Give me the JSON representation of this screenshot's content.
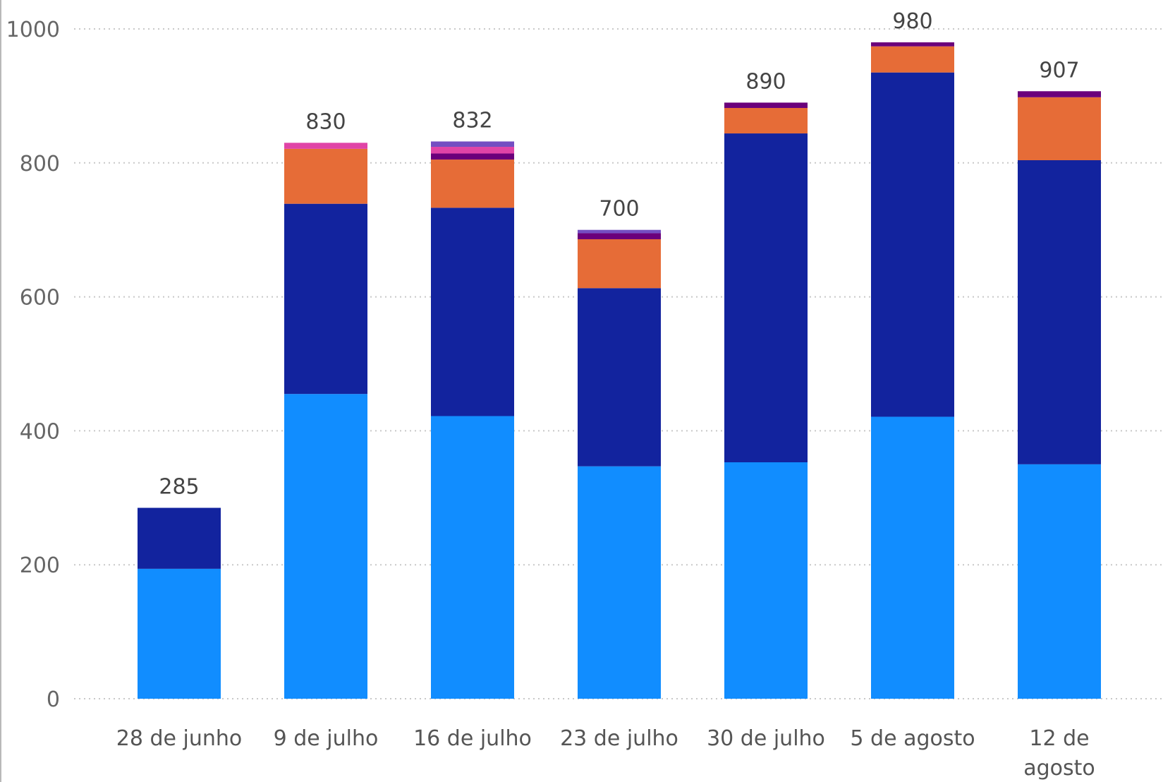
{
  "chart_data": {
    "type": "bar",
    "stacked": true,
    "categories": [
      "28 de junho",
      "9 de julho",
      "16 de julho",
      "23 de julho",
      "30 de julho",
      "5 de agosto",
      "12 de agosto"
    ],
    "series": [
      {
        "color": "#118dff",
        "values": [
          194,
          455,
          422,
          347,
          353,
          421,
          350
        ]
      },
      {
        "color": "#12239e",
        "values": [
          91,
          284,
          311,
          266,
          491,
          514,
          454
        ]
      },
      {
        "color": "#e66c37",
        "values": [
          0,
          82,
          72,
          73,
          38,
          39,
          94
        ]
      },
      {
        "color": "#6b007b",
        "values": [
          0,
          0,
          9,
          9,
          8,
          6,
          9
        ]
      },
      {
        "color": "#e044a7",
        "values": [
          0,
          9,
          10,
          0,
          0,
          0,
          0
        ]
      },
      {
        "color": "#744ec2",
        "values": [
          0,
          0,
          8,
          5,
          0,
          0,
          0
        ]
      }
    ],
    "totals": [
      285,
      830,
      832,
      700,
      890,
      980,
      907
    ],
    "y_ticks": [
      0,
      200,
      400,
      600,
      800,
      1000
    ],
    "ylim": [
      0,
      1000
    ],
    "grid": "horizontal-dotted",
    "legend": "none"
  }
}
